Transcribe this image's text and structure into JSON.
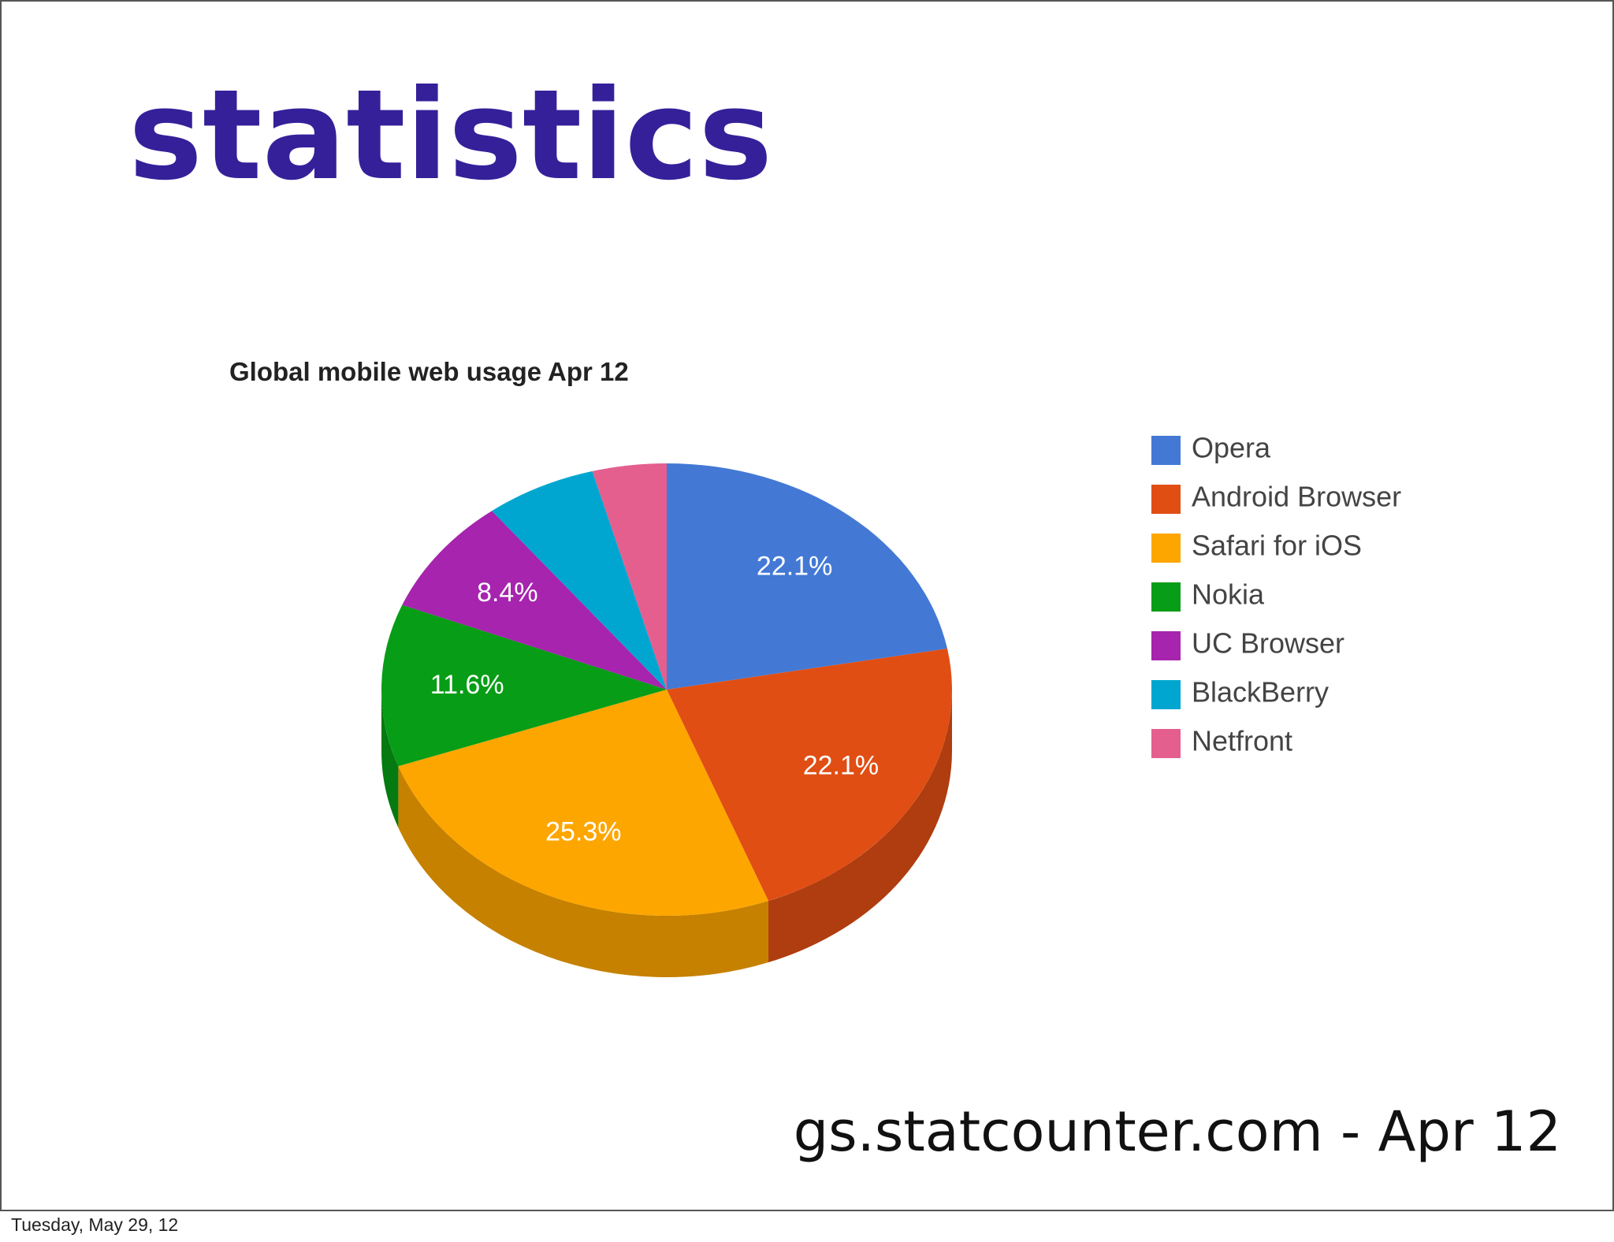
{
  "slide": {
    "title": "statistics",
    "source": "gs.statcounter.com - Apr 12",
    "footer": "Tuesday, May 29, 12"
  },
  "chart_data": {
    "type": "pie",
    "title": "Global mobile web usage Apr 12",
    "categories": [
      "Opera",
      "Android Browser",
      "Safari for iOS",
      "Nokia",
      "UC Browser",
      "BlackBerry",
      "Netfront"
    ],
    "values": [
      22.1,
      22.1,
      25.3,
      11.6,
      8.4,
      6.3,
      4.2
    ],
    "value_labels": [
      "22.1%",
      "22.1%",
      "25.3%",
      "11.6%",
      "8.4%",
      null,
      null
    ],
    "colors": [
      "#4379d5",
      "#e04e14",
      "#fea600",
      "#079d16",
      "#a624ae",
      "#01a6d0",
      "#e45f8d"
    ],
    "legend": "right"
  }
}
